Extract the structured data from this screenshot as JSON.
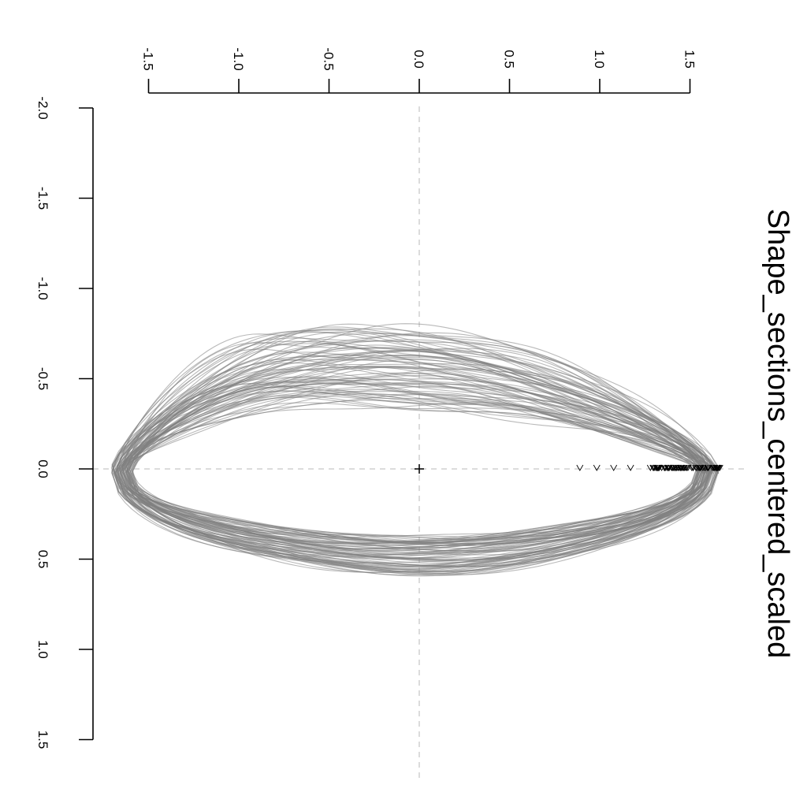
{
  "chart_data": {
    "type": "line",
    "title": "Shape_sections_centered_scaled",
    "xlabel": "",
    "ylabel": "",
    "x_axis": {
      "ticks": [
        -1.5,
        -1.0,
        -0.5,
        0.0,
        0.5,
        1.0,
        1.5
      ],
      "tick_labels": [
        "-1.5",
        "-1.0",
        "-0.5",
        "0.0",
        "0.5",
        "1.0",
        "1.5"
      ]
    },
    "y_axis": {
      "ticks": [
        -2.0,
        -1.5,
        -1.0,
        -0.5,
        0.0,
        0.5,
        1.0,
        1.5
      ],
      "tick_labels": [
        "-2.0",
        "-1.5",
        "-1.0",
        "-0.5",
        "0.0",
        "0.5",
        "1.0",
        "1.5"
      ]
    },
    "orientation": "rotated-90-clockwise",
    "xlim": [
      -1.65,
      1.75
    ],
    "ylim": [
      -2.0,
      1.5
    ],
    "reference_lines": {
      "x": 0,
      "y": 0,
      "style": "dashed",
      "color": "#c8c8c8"
    },
    "center_marker": {
      "x": 0,
      "y": 0,
      "symbol": "+"
    },
    "outline_color": "#808080",
    "outline_count": 80,
    "outline_template": {
      "x_extent": [
        -1.66,
        1.6
      ],
      "y_top": -0.52,
      "y_bottom": 0.45
    },
    "start_point_x_range": [
      0.89,
      1.67
    ]
  }
}
